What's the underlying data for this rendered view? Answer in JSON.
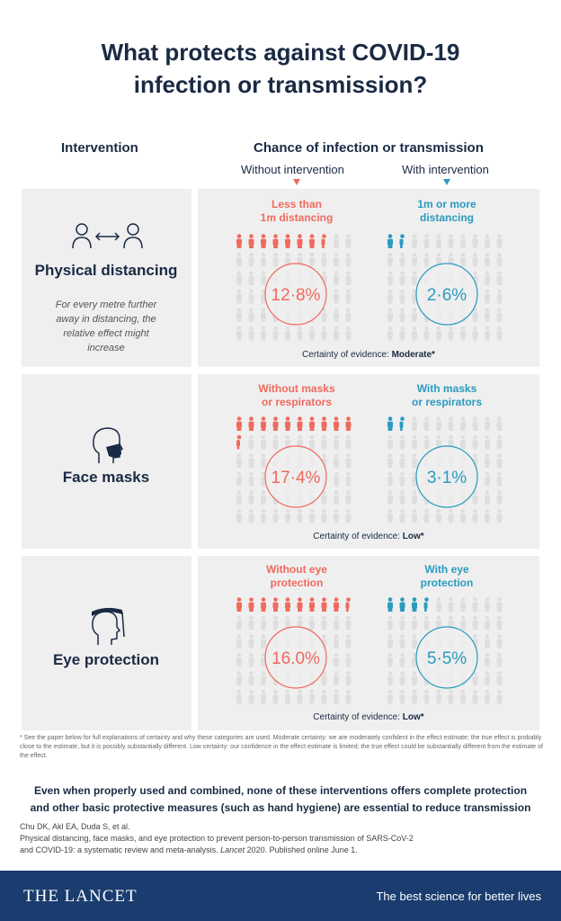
{
  "title_line1": "What protects against COVID-19",
  "title_line2": "infection or transmission?",
  "col_intervention": "Intervention",
  "col_chance": "Chance of infection or transmission",
  "sub_without": "Without intervention",
  "sub_with": "With intervention",
  "colors": {
    "without": "#f06a5e",
    "with": "#2a9bbf",
    "inactive": "#dedede",
    "navy": "#1a2a44",
    "footer": "#1a3c6e"
  },
  "rows": [
    {
      "name": "Physical distancing",
      "icon": "people-distancing-icon",
      "note": [
        "For every metre further",
        "away in distancing, the",
        "relative effect might",
        "increase"
      ],
      "without_label": [
        "Less than",
        "1m distancing"
      ],
      "with_label": [
        "1m or more",
        "distancing"
      ],
      "certainty_prefix": "Certainty of evidence: ",
      "certainty": "Moderate*"
    },
    {
      "name": "Face masks",
      "icon": "face-mask-icon",
      "note": [],
      "without_label": [
        "Without masks",
        "or respirators"
      ],
      "with_label": [
        "With masks",
        "or respirators"
      ],
      "certainty_prefix": "Certainty of evidence: ",
      "certainty": "Low*"
    },
    {
      "name": "Eye protection",
      "icon": "face-shield-icon",
      "note": [],
      "without_label": [
        "Without eye",
        "protection"
      ],
      "with_label": [
        "With eye",
        "protection"
      ],
      "certainty_prefix": "Certainty of evidence: ",
      "certainty": "Low*"
    }
  ],
  "chart_data": {
    "type": "table",
    "unit": "%",
    "rows": [
      {
        "intervention": "Physical distancing",
        "without": 12.8,
        "with": 2.6,
        "without_text": "12·8%",
        "with_text": "2·6%"
      },
      {
        "intervention": "Face masks",
        "without": 17.4,
        "with": 3.1,
        "without_text": "17·4%",
        "with_text": "3·1%"
      },
      {
        "intervention": "Eye protection",
        "without": 16.0,
        "with": 5.5,
        "without_text": "16.0%",
        "with_text": "5·5%"
      }
    ]
  },
  "footnote": "* See the paper below for full explanations of certainty and why these categories are used. Moderate certainty: we are moderately confident in the effect estimate; the true effect is probably close to the estimate, but it is possibly substantially different. Low certainty: our confidence in the effect estimate is limited; the true effect could be substantially different from the estimate of the effect.",
  "conclusion_line1": "Even when properly used and combined, none of these interventions offers complete protection",
  "conclusion_line2": "and other basic protective measures (such as hand hygiene) are essential to reduce transmission",
  "ref_line1": "Chu DK, Akl EA, Duda S, et al.",
  "ref_line2": "Physical distancing, face masks, and eye protection to prevent person-to-person transmission of SARS-CoV-2",
  "ref_line3_a": "and COVID-19: a systematic review and meta-analysis. ",
  "ref_line3_journal": "Lancet",
  "ref_line3_b": " 2020. Published online June 1.",
  "brand": "THE LANCET",
  "tagline": "The best science for better lives"
}
